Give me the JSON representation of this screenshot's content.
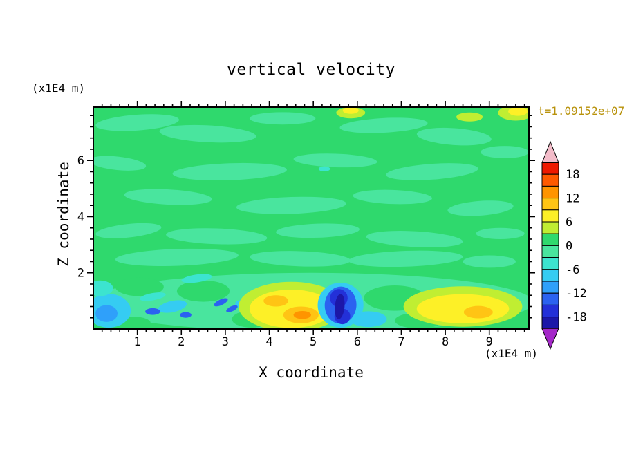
{
  "title": "vertical velocity",
  "timestamp": "t=1.09152e+07",
  "axes": {
    "x_label": "X coordinate",
    "y_label": "Z coordinate",
    "x_unit": "(x1E4 m)",
    "y_unit": "(x1E4 m)"
  },
  "colors": {
    "timestamp_text": "#b8920b",
    "page_background": "#ffffff",
    "axis_and_text": "#000000"
  },
  "chart_data": {
    "type": "heatmap",
    "subtype": "filled-contour",
    "title": "vertical velocity",
    "xlabel": "X coordinate",
    "ylabel": "Z coordinate",
    "x_unit": "(x1E4 m)",
    "y_unit": "(x1E4 m)",
    "timestamp": "t=1.09152e+07",
    "xlim": [
      0,
      9.9
    ],
    "ylim": [
      0,
      7.9
    ],
    "x_ticks": [
      1,
      2,
      3,
      4,
      5,
      6,
      7,
      8,
      9
    ],
    "y_ticks": [
      2,
      4,
      6
    ],
    "x_minor_step": 0.2,
    "y_minor_step": 0.4,
    "grid": false,
    "legend_position": "right-colorbar",
    "dominant_field_value_band": "0 to 3 (green background over most of domain)",
    "colorbar": {
      "tick_labels": [
        18,
        12,
        6,
        0,
        -6,
        -12,
        -18
      ],
      "band_step": 3,
      "range": [
        -21,
        21
      ],
      "over_color": "#f3bcc9",
      "under_color": "#a428c8",
      "colors_top_to_bottom": [
        "#ee1900",
        "#ff5a00",
        "#ff9400",
        "#ffc414",
        "#fdf027",
        "#c0ee32",
        "#2fd96d",
        "#49e59e",
        "#3ce4cf",
        "#35ccf2",
        "#2fa0fa",
        "#2b62f0",
        "#2330d8",
        "#1c17a8"
      ]
    },
    "palette": {
      "green": "#2fd96d",
      "mint": "#49e59e",
      "turquoise": "#3ce4cf",
      "cyan": "#35ccf2",
      "lightblue": "#2fa0fa",
      "blue": "#2b62f0",
      "darkblue": "#2330d8",
      "navy": "#1c17a8",
      "yellowgreen": "#c0ee32",
      "yellow": "#fdf027",
      "amber": "#ffc414",
      "orange": "#ff9400"
    },
    "features_note": "Approximate contour blobs read from the plot; format [x, z, rx, rz, rotation_deg, palette_color]. Upper field mostly uniform green with mint mottling; active layer below z=2 holds updraft (yellow/orange, x=4-5.3 and x=7.5-9.4) and downdraft (cyan/blue/navy, x=0-0.8, x=1.3-3.5, x=5.4-5.9) cells.",
    "features": [
      [
        1.0,
        7.35,
        0.95,
        0.28,
        -4,
        "mint"
      ],
      [
        2.6,
        6.95,
        1.1,
        0.3,
        3,
        "mint"
      ],
      [
        4.3,
        7.5,
        0.75,
        0.22,
        0,
        "mint"
      ],
      [
        6.6,
        7.25,
        1.0,
        0.26,
        -3,
        "mint"
      ],
      [
        8.2,
        6.85,
        0.85,
        0.3,
        4,
        "mint"
      ],
      [
        0.55,
        5.9,
        0.65,
        0.24,
        6,
        "mint"
      ],
      [
        3.1,
        5.6,
        1.3,
        0.3,
        -2,
        "mint"
      ],
      [
        5.5,
        6.0,
        0.95,
        0.24,
        2,
        "mint"
      ],
      [
        7.7,
        5.6,
        1.05,
        0.28,
        -4,
        "mint"
      ],
      [
        9.35,
        6.3,
        0.55,
        0.22,
        0,
        "mint"
      ],
      [
        1.7,
        4.7,
        1.0,
        0.27,
        3,
        "mint"
      ],
      [
        4.5,
        4.4,
        1.25,
        0.3,
        -2,
        "mint"
      ],
      [
        6.8,
        4.7,
        0.9,
        0.25,
        2,
        "mint"
      ],
      [
        8.8,
        4.3,
        0.75,
        0.26,
        -4,
        "mint"
      ],
      [
        0.8,
        3.5,
        0.75,
        0.24,
        -6,
        "mint"
      ],
      [
        2.8,
        3.3,
        1.15,
        0.28,
        2,
        "mint"
      ],
      [
        5.1,
        3.5,
        0.95,
        0.25,
        -2,
        "mint"
      ],
      [
        7.3,
        3.2,
        1.1,
        0.28,
        3,
        "mint"
      ],
      [
        9.25,
        3.4,
        0.55,
        0.2,
        0,
        "mint"
      ],
      [
        1.9,
        2.55,
        1.4,
        0.3,
        -2,
        "mint"
      ],
      [
        4.7,
        2.5,
        1.15,
        0.27,
        2,
        "mint"
      ],
      [
        7.1,
        2.5,
        1.3,
        0.28,
        -2,
        "mint"
      ],
      [
        9.0,
        2.4,
        0.6,
        0.22,
        0,
        "mint"
      ],
      [
        4.95,
        0.95,
        5.05,
        1.05,
        0,
        "mint"
      ],
      [
        1.05,
        1.5,
        0.55,
        0.33,
        0,
        "green"
      ],
      [
        2.5,
        1.35,
        0.6,
        0.38,
        0,
        "green"
      ],
      [
        3.6,
        0.35,
        0.45,
        0.3,
        0,
        "green"
      ],
      [
        6.85,
        1.1,
        0.7,
        0.45,
        0,
        "green"
      ],
      [
        7.4,
        0.3,
        0.55,
        0.28,
        0,
        "green"
      ],
      [
        0.9,
        0.22,
        0.4,
        0.22,
        0,
        "green"
      ],
      [
        2.35,
        1.8,
        0.35,
        0.14,
        -8,
        "turquoise"
      ],
      [
        1.35,
        1.15,
        0.3,
        0.13,
        -10,
        "turquoise"
      ],
      [
        0.35,
        0.65,
        0.5,
        0.6,
        0,
        "cyan"
      ],
      [
        0.3,
        0.55,
        0.25,
        0.3,
        0,
        "lightblue"
      ],
      [
        0.15,
        1.45,
        0.3,
        0.28,
        0,
        "turquoise"
      ],
      [
        1.8,
        0.8,
        0.33,
        0.2,
        -12,
        "cyan"
      ],
      [
        3.5,
        0.85,
        0.28,
        0.18,
        8,
        "cyan"
      ],
      [
        6.25,
        0.35,
        0.42,
        0.28,
        0,
        "cyan"
      ],
      [
        5.25,
        5.7,
        0.13,
        0.09,
        0,
        "turquoise"
      ],
      [
        1.35,
        0.62,
        0.17,
        0.12,
        0,
        "blue"
      ],
      [
        2.1,
        0.5,
        0.13,
        0.1,
        0,
        "blue"
      ],
      [
        2.9,
        0.95,
        0.17,
        0.1,
        -25,
        "blue"
      ],
      [
        3.15,
        0.72,
        0.14,
        0.09,
        -25,
        "blue"
      ],
      [
        4.5,
        0.8,
        1.2,
        0.88,
        0,
        "yellowgreen"
      ],
      [
        4.5,
        0.72,
        0.95,
        0.68,
        0,
        "yellow"
      ],
      [
        4.72,
        0.5,
        0.4,
        0.3,
        0,
        "amber"
      ],
      [
        4.15,
        1.0,
        0.28,
        0.2,
        0,
        "amber"
      ],
      [
        4.75,
        0.5,
        0.2,
        0.14,
        0,
        "orange"
      ],
      [
        5.62,
        0.85,
        0.52,
        0.8,
        0,
        "cyan"
      ],
      [
        5.62,
        0.85,
        0.36,
        0.66,
        4,
        "blue"
      ],
      [
        5.58,
        1.1,
        0.2,
        0.32,
        12,
        "darkblue"
      ],
      [
        5.66,
        0.45,
        0.18,
        0.28,
        -8,
        "darkblue"
      ],
      [
        5.6,
        0.8,
        0.11,
        0.45,
        5,
        "navy"
      ],
      [
        8.4,
        0.8,
        1.35,
        0.72,
        0,
        "yellowgreen"
      ],
      [
        8.4,
        0.72,
        1.05,
        0.52,
        0,
        "yellow"
      ],
      [
        8.75,
        0.6,
        0.33,
        0.22,
        0,
        "amber"
      ],
      [
        9.6,
        7.7,
        0.4,
        0.28,
        0,
        "yellowgreen"
      ],
      [
        9.65,
        7.75,
        0.22,
        0.16,
        0,
        "yellow"
      ],
      [
        5.85,
        7.7,
        0.33,
        0.2,
        0,
        "yellowgreen"
      ],
      [
        5.85,
        7.78,
        0.18,
        0.12,
        0,
        "yellow"
      ],
      [
        8.55,
        7.55,
        0.3,
        0.16,
        0,
        "yellowgreen"
      ]
    ]
  }
}
